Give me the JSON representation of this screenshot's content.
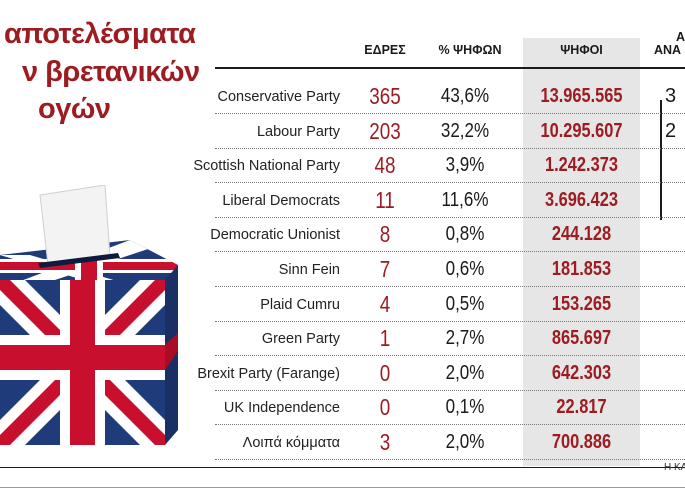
{
  "title": {
    "line1": "αποτελέσματα",
    "line2": "ν βρετανικών",
    "line3": "ογών"
  },
  "columns": {
    "seats": "ΕΔΡΕΣ",
    "pct": "% ΨΗΦΩΝ",
    "votes": "ΨΗΦΟΙ",
    "cut_top": "Α",
    "cut_bottom": "ΑΝΑ"
  },
  "credit": "Η ΚΑ",
  "colors": {
    "accent": "#9c1c22",
    "votes_bg": "#e6e6e6",
    "flag_blue": "#1f3b7a",
    "flag_red": "#c8102e"
  },
  "chart_data": {
    "type": "table",
    "columns": [
      "ΕΔΡΕΣ",
      "% ΨΗΦΩΝ",
      "ΨΗΦΟΙ"
    ],
    "rows": [
      {
        "party": "Conservative Party",
        "seats": "365",
        "pct": "43,6%",
        "votes": "13.965.565",
        "cut": "3"
      },
      {
        "party": "Labour Party",
        "seats": "203",
        "pct": "32,2%",
        "votes": "10.295.607",
        "cut": "2"
      },
      {
        "party": "Scottish National Party",
        "seats": "48",
        "pct": "3,9%",
        "votes": "1.242.373",
        "cut": ""
      },
      {
        "party": "Liberal Democrats",
        "seats": "11",
        "pct": "11,6%",
        "votes": "3.696.423",
        "cut": ""
      },
      {
        "party": "Democratic Unionist",
        "seats": "8",
        "pct": "0,8%",
        "votes": "244.128",
        "cut": ""
      },
      {
        "party": "Sinn Fein",
        "seats": "7",
        "pct": "0,6%",
        "votes": "181.853",
        "cut": ""
      },
      {
        "party": "Plaid Cumru",
        "seats": "4",
        "pct": "0,5%",
        "votes": "153.265",
        "cut": ""
      },
      {
        "party": "Green Party",
        "seats": "1",
        "pct": "2,7%",
        "votes": "865.697",
        "cut": ""
      },
      {
        "party": "Brexit Party (Farange)",
        "seats": "0",
        "pct": "2,0%",
        "votes": "642.303",
        "cut": ""
      },
      {
        "party": "UK Independence",
        "seats": "0",
        "pct": "0,1%",
        "votes": "22.817",
        "cut": ""
      },
      {
        "party": "Λοιπά κόμματα",
        "seats": "3",
        "pct": "2,0%",
        "votes": "700.886",
        "cut": ""
      }
    ]
  }
}
